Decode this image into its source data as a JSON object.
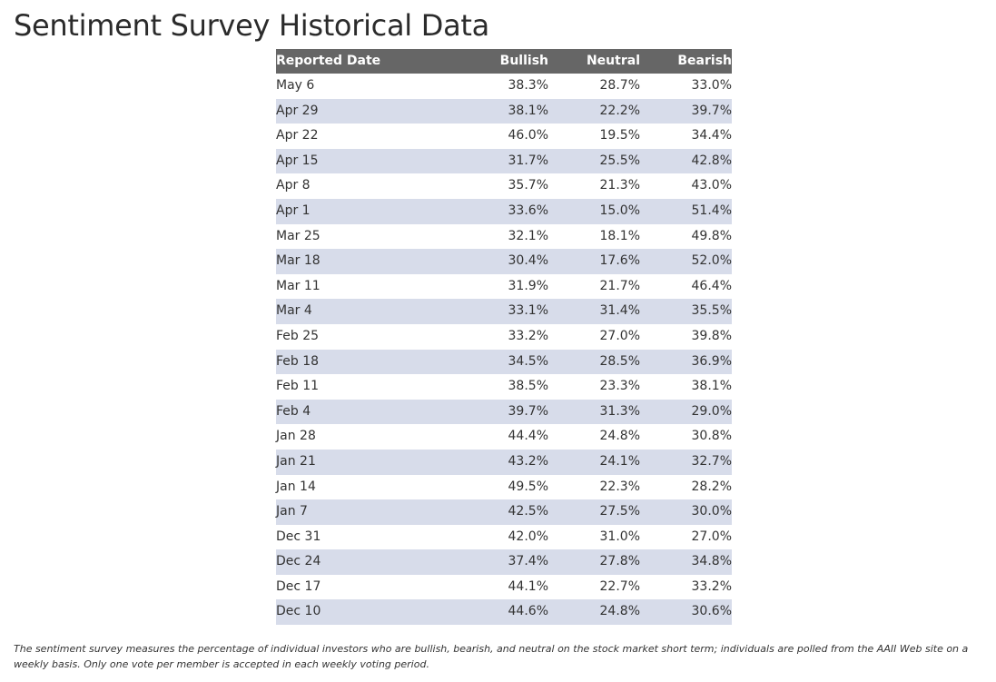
{
  "title": "Sentiment Survey Historical Data",
  "table": {
    "headers": {
      "date": "Reported Date",
      "bullish": "Bullish",
      "neutral": "Neutral",
      "bearish": "Bearish"
    },
    "rows": [
      {
        "date": "May 6",
        "bullish": "38.3%",
        "neutral": "28.7%",
        "bearish": "33.0%"
      },
      {
        "date": "Apr 29",
        "bullish": "38.1%",
        "neutral": "22.2%",
        "bearish": "39.7%"
      },
      {
        "date": "Apr 22",
        "bullish": "46.0%",
        "neutral": "19.5%",
        "bearish": "34.4%"
      },
      {
        "date": "Apr 15",
        "bullish": "31.7%",
        "neutral": "25.5%",
        "bearish": "42.8%"
      },
      {
        "date": "Apr 8",
        "bullish": "35.7%",
        "neutral": "21.3%",
        "bearish": "43.0%"
      },
      {
        "date": "Apr 1",
        "bullish": "33.6%",
        "neutral": "15.0%",
        "bearish": "51.4%"
      },
      {
        "date": "Mar 25",
        "bullish": "32.1%",
        "neutral": "18.1%",
        "bearish": "49.8%"
      },
      {
        "date": "Mar 18",
        "bullish": "30.4%",
        "neutral": "17.6%",
        "bearish": "52.0%"
      },
      {
        "date": "Mar 11",
        "bullish": "31.9%",
        "neutral": "21.7%",
        "bearish": "46.4%"
      },
      {
        "date": "Mar 4",
        "bullish": "33.1%",
        "neutral": "31.4%",
        "bearish": "35.5%"
      },
      {
        "date": "Feb 25",
        "bullish": "33.2%",
        "neutral": "27.0%",
        "bearish": "39.8%"
      },
      {
        "date": "Feb 18",
        "bullish": "34.5%",
        "neutral": "28.5%",
        "bearish": "36.9%"
      },
      {
        "date": "Feb 11",
        "bullish": "38.5%",
        "neutral": "23.3%",
        "bearish": "38.1%"
      },
      {
        "date": "Feb 4",
        "bullish": "39.7%",
        "neutral": "31.3%",
        "bearish": "29.0%"
      },
      {
        "date": "Jan 28",
        "bullish": "44.4%",
        "neutral": "24.8%",
        "bearish": "30.8%"
      },
      {
        "date": "Jan 21",
        "bullish": "43.2%",
        "neutral": "24.1%",
        "bearish": "32.7%"
      },
      {
        "date": "Jan 14",
        "bullish": "49.5%",
        "neutral": "22.3%",
        "bearish": "28.2%"
      },
      {
        "date": "Jan 7",
        "bullish": "42.5%",
        "neutral": "27.5%",
        "bearish": "30.0%"
      },
      {
        "date": "Dec 31",
        "bullish": "42.0%",
        "neutral": "31.0%",
        "bearish": "27.0%"
      },
      {
        "date": "Dec 24",
        "bullish": "37.4%",
        "neutral": "27.8%",
        "bearish": "34.8%"
      },
      {
        "date": "Dec 17",
        "bullish": "44.1%",
        "neutral": "22.7%",
        "bearish": "33.2%"
      },
      {
        "date": "Dec 10",
        "bullish": "44.6%",
        "neutral": "24.8%",
        "bearish": "30.6%"
      }
    ]
  },
  "footnote": "The sentiment survey measures the percentage of individual investors who are bullish, bearish, and neutral on the stock market short term; individuals are polled from the AAII Web site on a weekly basis. Only one vote per member is accepted in each weekly voting period.",
  "colors": {
    "header_bg": "#666666",
    "stripe_bg": "#d7dcea",
    "text": "#333333"
  }
}
